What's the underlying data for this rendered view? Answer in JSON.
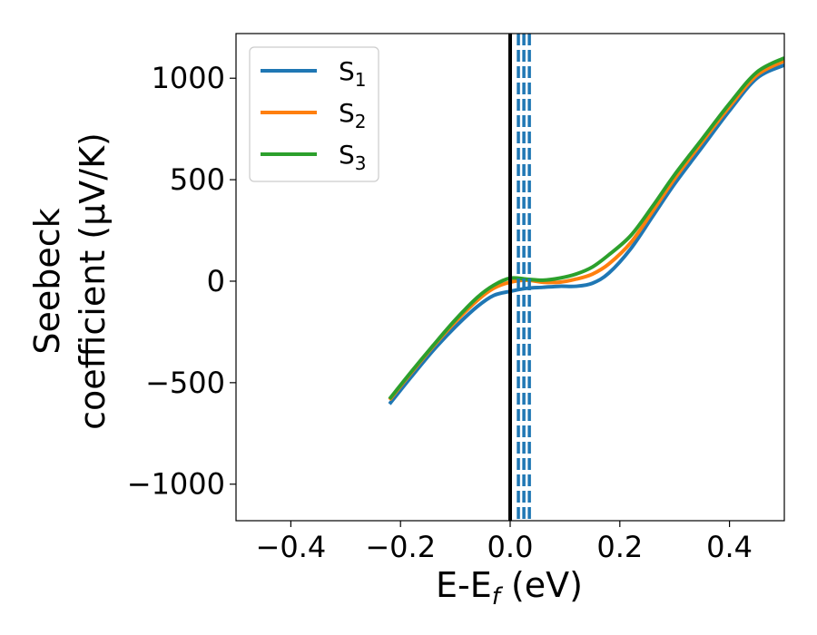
{
  "chart_data": {
    "type": "line",
    "title": "",
    "xlabel_main": "E-E",
    "xlabel_sub": "f",
    "xlabel_rest": " (eV)",
    "ylabel_line1": "Seebeck",
    "ylabel_line2": "coefficient  (μV/K)",
    "xlim": [
      -0.5,
      0.5
    ],
    "ylim": [
      -1180,
      1220
    ],
    "xticks": [
      -0.4,
      -0.2,
      0.0,
      0.2,
      0.4
    ],
    "xtick_labels": [
      "−0.4",
      "−0.2",
      "0.0",
      "0.2",
      "0.4"
    ],
    "yticks": [
      -1000,
      -500,
      0,
      500,
      1000
    ],
    "ytick_labels": [
      "−1000",
      "−500",
      "0",
      "500",
      "1000"
    ],
    "grid": false,
    "legend_position": "upper-left",
    "fermi_line": {
      "x": 0.0,
      "color": "#000000"
    },
    "dashed_lines": {
      "x": [
        0.015,
        0.025,
        0.035
      ],
      "color": "#1f77b4"
    },
    "series": [
      {
        "name": "S",
        "subscript": "1",
        "color": "#1f77b4",
        "x": [
          -0.22,
          -0.18,
          -0.14,
          -0.1,
          -0.06,
          -0.03,
          0.0,
          0.03,
          0.06,
          0.09,
          0.12,
          0.15,
          0.18,
          0.22,
          0.26,
          0.3,
          0.35,
          0.4,
          0.45,
          0.5
        ],
        "y": [
          -605,
          -470,
          -340,
          -225,
          -125,
          -70,
          -50,
          -35,
          -30,
          -25,
          -25,
          -10,
          40,
          160,
          320,
          480,
          660,
          840,
          1000,
          1065
        ]
      },
      {
        "name": "S",
        "subscript": "2",
        "color": "#ff7f0e",
        "x": [
          -0.22,
          -0.18,
          -0.14,
          -0.1,
          -0.06,
          -0.03,
          0.0,
          0.03,
          0.06,
          0.09,
          0.12,
          0.15,
          0.18,
          0.22,
          0.26,
          0.3,
          0.35,
          0.4,
          0.45,
          0.5
        ],
        "y": [
          -585,
          -450,
          -320,
          -200,
          -95,
          -35,
          -5,
          5,
          -5,
          -5,
          10,
          35,
          85,
          190,
          345,
          505,
          685,
          860,
          1015,
          1085
        ]
      },
      {
        "name": "S",
        "subscript": "3",
        "color": "#2ca02c",
        "x": [
          -0.22,
          -0.18,
          -0.14,
          -0.1,
          -0.06,
          -0.03,
          0.0,
          0.03,
          0.06,
          0.09,
          0.12,
          0.15,
          0.18,
          0.22,
          0.26,
          0.3,
          0.35,
          0.4,
          0.45,
          0.5
        ],
        "y": [
          -580,
          -445,
          -315,
          -190,
          -80,
          -20,
          15,
          10,
          5,
          15,
          35,
          70,
          130,
          225,
          370,
          525,
          700,
          875,
          1030,
          1100
        ]
      }
    ]
  }
}
